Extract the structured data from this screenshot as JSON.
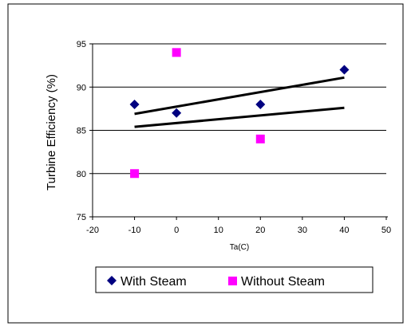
{
  "chart_data": {
    "type": "scatter",
    "title": "",
    "xlabel": "Ta(C)",
    "ylabel": "Turbine Efficiency (%)",
    "xlim": [
      -20,
      50
    ],
    "ylim": [
      75,
      95
    ],
    "xticks": [
      "-20",
      "-10",
      "0",
      "10",
      "20",
      "30",
      "40",
      "50"
    ],
    "yticks": [
      "75",
      "80",
      "85",
      "90",
      "95"
    ],
    "grid": "horizontal",
    "legend_position": "bottom",
    "series": [
      {
        "name": "With Steam",
        "marker": "diamond",
        "color": "#000080",
        "points": [
          {
            "x": -10,
            "y": 88
          },
          {
            "x": 0,
            "y": 87
          },
          {
            "x": 20,
            "y": 88
          },
          {
            "x": 40,
            "y": 92
          }
        ],
        "trendline": {
          "x": [
            -10,
            40
          ],
          "y": [
            86.9,
            91.1
          ]
        }
      },
      {
        "name": "Without Steam",
        "marker": "square",
        "color": "#FF00FF",
        "points": [
          {
            "x": -10,
            "y": 80
          },
          {
            "x": 0,
            "y": 94
          },
          {
            "x": 20,
            "y": 84
          },
          {
            "x": 40,
            "y": null
          }
        ],
        "trendline": {
          "x": [
            -10,
            40
          ],
          "y": [
            85.4,
            87.6
          ]
        }
      }
    ],
    "colors": {
      "axis": "#000000",
      "grid": "#000000",
      "background": "#ffffff",
      "trend": "#000000"
    }
  }
}
